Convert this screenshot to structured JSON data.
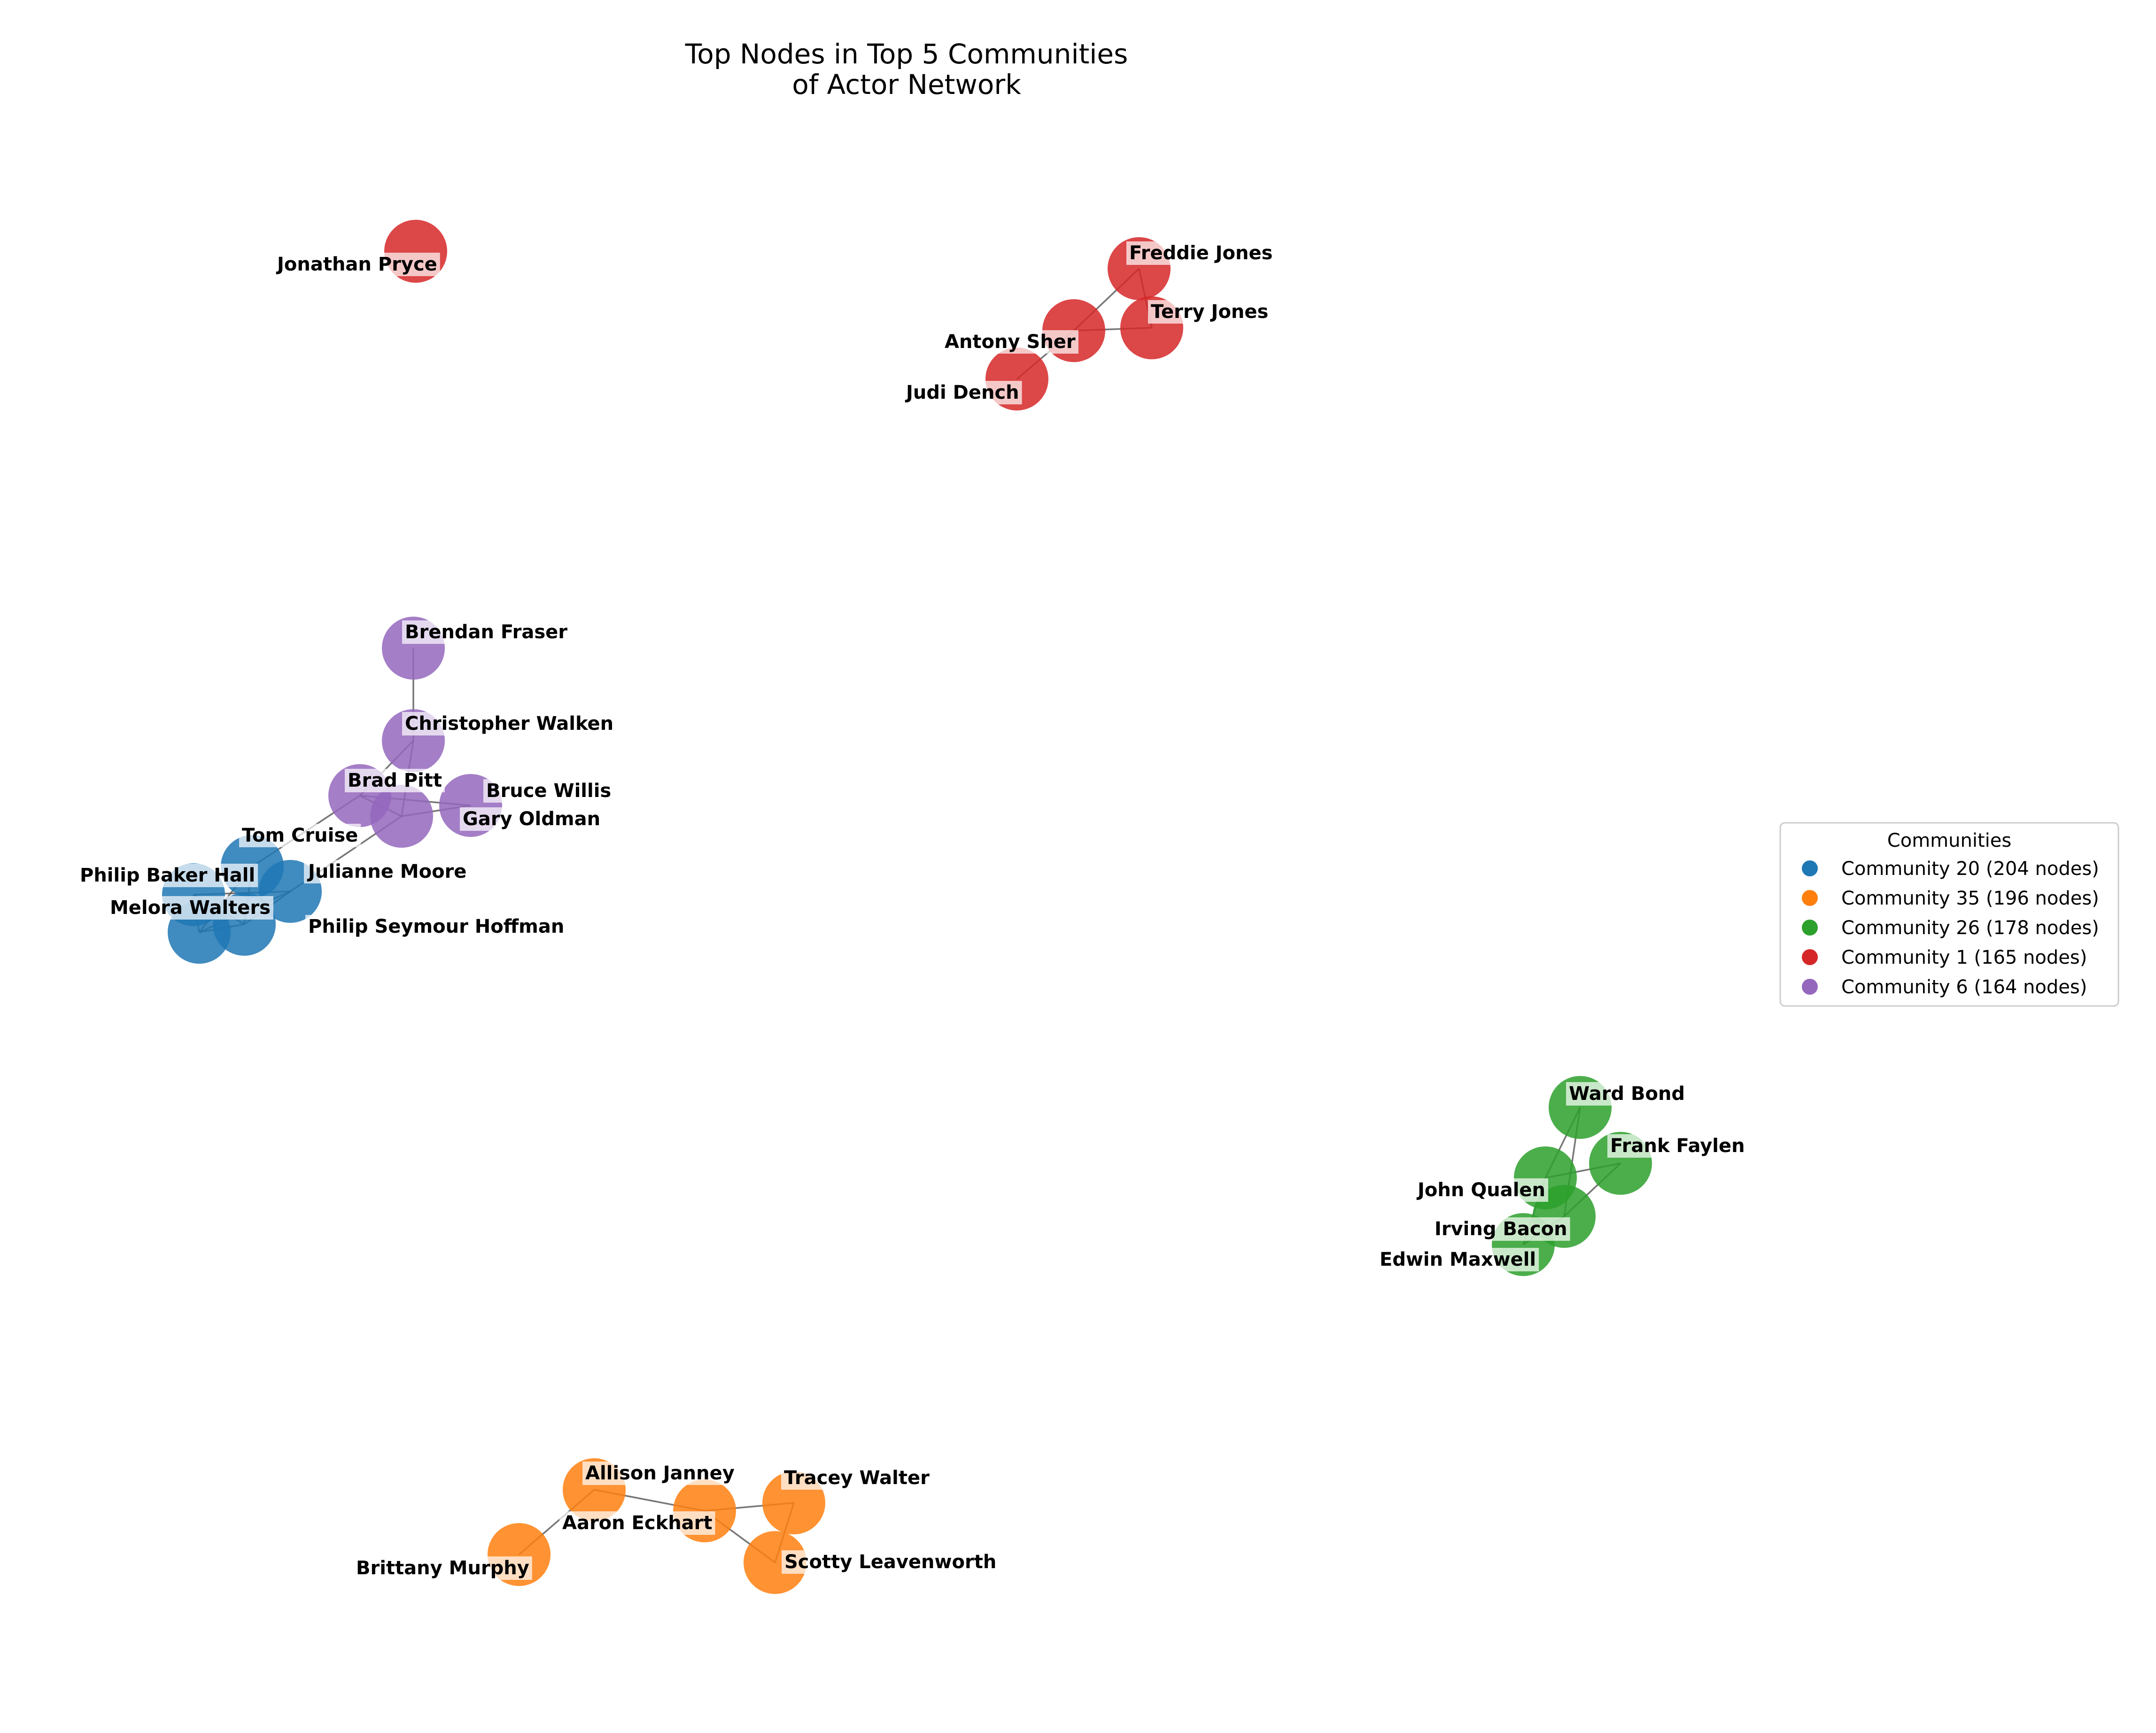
{
  "title_lines": [
    "Top Nodes in Top 5 Communities",
    "of Actor Network"
  ],
  "legend": {
    "title": "Communities",
    "entries": [
      {
        "community": "20",
        "label": "Community 20 (204 nodes)",
        "color": "#1f77b4"
      },
      {
        "community": "35",
        "label": "Community 35 (196 nodes)",
        "color": "#ff7f0e"
      },
      {
        "community": "26",
        "label": "Community 26 (178 nodes)",
        "color": "#2ca02c"
      },
      {
        "community": "1",
        "label": "Community 1 (165 nodes)",
        "color": "#d62728"
      },
      {
        "community": "6",
        "label": "Community 6 (164 nodes)",
        "color": "#9467bd"
      }
    ]
  },
  "nodes": [
    {
      "id": "jonathan-pryce",
      "label": "Jonathan Pryce",
      "community": "1"
    },
    {
      "id": "freddie-jones",
      "label": "Freddie Jones",
      "community": "1"
    },
    {
      "id": "terry-jones",
      "label": "Terry Jones",
      "community": "1"
    },
    {
      "id": "antony-sher",
      "label": "Antony Sher",
      "community": "1"
    },
    {
      "id": "judi-dench",
      "label": "Judi Dench",
      "community": "1"
    },
    {
      "id": "brendan-fraser",
      "label": "Brendan Fraser",
      "community": "6"
    },
    {
      "id": "christopher-walken",
      "label": "Christopher Walken",
      "community": "6"
    },
    {
      "id": "brad-pitt",
      "label": "Brad Pitt",
      "community": "6"
    },
    {
      "id": "bruce-willis",
      "label": "Bruce Willis",
      "community": "6"
    },
    {
      "id": "gary-oldman",
      "label": "Gary Oldman",
      "community": "6"
    },
    {
      "id": "tom-cruise",
      "label": "Tom Cruise",
      "community": "20"
    },
    {
      "id": "julianne-moore",
      "label": "Julianne Moore",
      "community": "20"
    },
    {
      "id": "philip-baker-hall",
      "label": "Philip Baker Hall",
      "community": "20"
    },
    {
      "id": "melora-walters",
      "label": "Melora Walters",
      "community": "20"
    },
    {
      "id": "philip-seymour-hoffman",
      "label": "Philip Seymour Hoffman",
      "community": "20"
    },
    {
      "id": "ward-bond",
      "label": "Ward Bond",
      "community": "26"
    },
    {
      "id": "frank-faylen",
      "label": "Frank Faylen",
      "community": "26"
    },
    {
      "id": "john-qualen",
      "label": "John Qualen",
      "community": "26"
    },
    {
      "id": "irving-bacon",
      "label": "Irving Bacon",
      "community": "26"
    },
    {
      "id": "edwin-maxwell",
      "label": "Edwin Maxwell",
      "community": "26"
    },
    {
      "id": "allison-janney",
      "label": "Allison Janney",
      "community": "35"
    },
    {
      "id": "tracey-walter",
      "label": "Tracey Walter",
      "community": "35"
    },
    {
      "id": "aaron-eckhart",
      "label": "Aaron Eckhart",
      "community": "35"
    },
    {
      "id": "scotty-leavenworth",
      "label": "Scotty Leavenworth",
      "community": "35"
    },
    {
      "id": "brittany-murphy",
      "label": "Brittany Murphy",
      "community": "35"
    }
  ],
  "edges": [
    [
      "freddie-jones",
      "terry-jones"
    ],
    [
      "freddie-jones",
      "antony-sher"
    ],
    [
      "antony-sher",
      "terry-jones"
    ],
    [
      "antony-sher",
      "judi-dench"
    ],
    [
      "brendan-fraser",
      "christopher-walken"
    ],
    [
      "christopher-walken",
      "gary-oldman"
    ],
    [
      "christopher-walken",
      "brad-pitt"
    ],
    [
      "brad-pitt",
      "bruce-willis"
    ],
    [
      "brad-pitt",
      "gary-oldman"
    ],
    [
      "gary-oldman",
      "bruce-willis"
    ],
    [
      "brad-pitt",
      "tom-cruise"
    ],
    [
      "gary-oldman",
      "julianne-moore"
    ],
    [
      "tom-cruise",
      "philip-seymour-hoffman"
    ],
    [
      "tom-cruise",
      "melora-walters"
    ],
    [
      "philip-baker-hall",
      "julianne-moore"
    ],
    [
      "philip-baker-hall",
      "melora-walters"
    ],
    [
      "melora-walters",
      "julianne-moore"
    ],
    [
      "philip-seymour-hoffman",
      "julianne-moore"
    ],
    [
      "philip-seymour-hoffman",
      "melora-walters"
    ],
    [
      "philip-baker-hall",
      "philip-seymour-hoffman"
    ],
    [
      "ward-bond",
      "john-qualen"
    ],
    [
      "ward-bond",
      "irving-bacon"
    ],
    [
      "john-qualen",
      "frank-faylen"
    ],
    [
      "frank-faylen",
      "irving-bacon"
    ],
    [
      "john-qualen",
      "edwin-maxwell"
    ],
    [
      "irving-bacon",
      "edwin-maxwell"
    ],
    [
      "allison-janney",
      "aaron-eckhart"
    ],
    [
      "aaron-eckhart",
      "tracey-walter"
    ],
    [
      "aaron-eckhart",
      "scotty-leavenworth"
    ],
    [
      "tracey-walter",
      "scotty-leavenworth"
    ],
    [
      "allison-janney",
      "brittany-murphy"
    ]
  ]
}
